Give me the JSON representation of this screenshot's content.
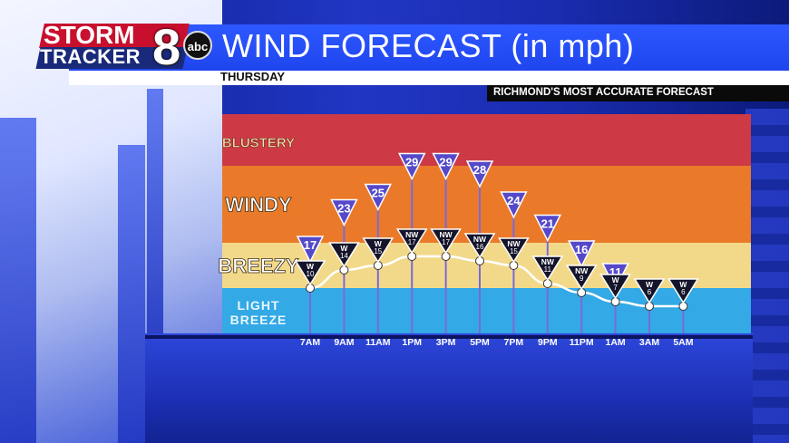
{
  "header": {
    "title": "WIND FORECAST (in mph)",
    "day": "THURSDAY",
    "tagline": "RICHMOND'S MOST ACCURATE FORECAST"
  },
  "logo": {
    "line1": "STORM",
    "line2": "TRACKER",
    "number": "8",
    "network": "abc"
  },
  "colors": {
    "blustery": "#cd3a45",
    "windy": "#ea7a2a",
    "breezy": "#f2d98a",
    "light_breeze": "#33a9e6",
    "marker": "#5549c9",
    "sustained_marker": "#14142a"
  },
  "chart_data": {
    "type": "line",
    "categories": [
      "7AM",
      "9AM",
      "11AM",
      "1PM",
      "3PM",
      "5PM",
      "7PM",
      "9PM",
      "11PM",
      "1AM",
      "3AM",
      "5AM"
    ],
    "series": [
      {
        "name": "",
        "values": [
          10,
          14,
          15,
          17,
          17,
          16,
          15,
          11,
          9,
          7,
          6,
          6
        ],
        "directions": [
          "W",
          "W",
          "W",
          "NW",
          "NW",
          "NW",
          "NW",
          "NW",
          "NW",
          "W",
          "W",
          "W"
        ]
      },
      {
        "name": "",
        "values": [
          17,
          23,
          25,
          29,
          29,
          28,
          24,
          21,
          16,
          11,
          null,
          null
        ]
      }
    ],
    "bands": [
      {
        "label": "BLUSTERY",
        "from": 30,
        "to": 40
      },
      {
        "label": "WINDY",
        "from": 20,
        "to": 30
      },
      {
        "label": "BREEZY",
        "from": 10,
        "to": 20
      },
      {
        "label_line1": "LIGHT",
        "label_line2": "BREEZE",
        "from": 0,
        "to": 10
      }
    ],
    "ylim": [
      0,
      40
    ]
  }
}
